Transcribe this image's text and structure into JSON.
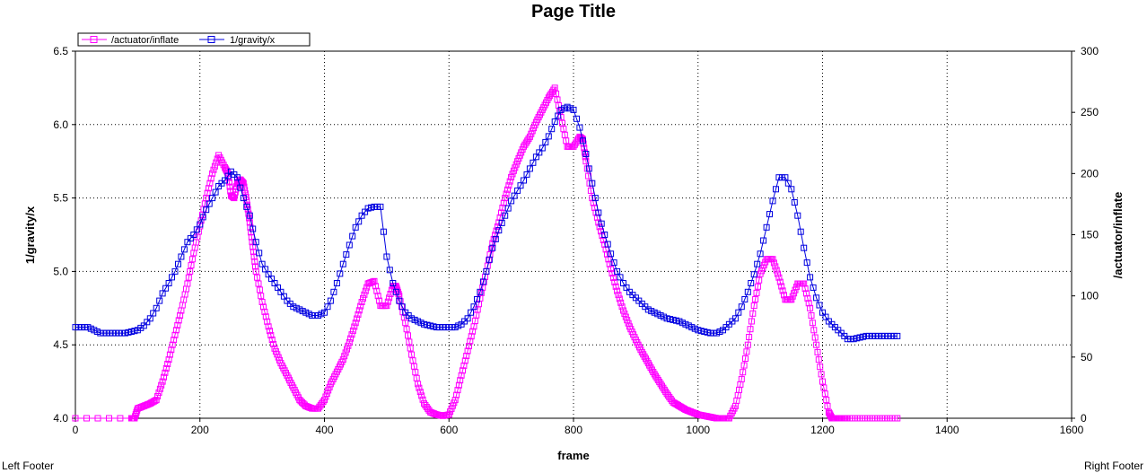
{
  "page": {
    "title": "Page Title",
    "footer_left": "Left Footer",
    "footer_right": "Right Footer"
  },
  "chart_data": {
    "type": "line",
    "title": "Page Title",
    "xlabel": "frame",
    "ylabel_left": "1/gravity/x",
    "ylabel_right": "/actuator/inflate",
    "xlim": [
      0,
      1600
    ],
    "ylim_left": [
      4.0,
      6.5
    ],
    "ylim_right": [
      0,
      300
    ],
    "x_ticks": [
      0,
      200,
      400,
      600,
      800,
      1000,
      1200,
      1400,
      1600
    ],
    "y_left_ticks": [
      4.0,
      4.5,
      5.0,
      5.5,
      6.0,
      6.5
    ],
    "y_right_ticks": [
      0,
      50,
      100,
      150,
      200,
      250,
      300
    ],
    "grid": true,
    "legend_position": "top-left",
    "series": [
      {
        "name": "/actuator/inflate",
        "axis": "right",
        "color": "#ff00ff",
        "marker": "square-open",
        "x": [
          0,
          90,
          95,
          100,
          110,
          120,
          130,
          140,
          150,
          160,
          170,
          180,
          190,
          200,
          210,
          220,
          230,
          240,
          245,
          250,
          255,
          260,
          265,
          270,
          275,
          280,
          285,
          290,
          300,
          310,
          320,
          330,
          340,
          350,
          360,
          370,
          380,
          390,
          400,
          410,
          420,
          430,
          440,
          450,
          460,
          470,
          480,
          490,
          500,
          510,
          515,
          520,
          530,
          540,
          550,
          560,
          570,
          580,
          590,
          600,
          610,
          620,
          630,
          640,
          650,
          660,
          670,
          680,
          690,
          700,
          710,
          720,
          730,
          740,
          750,
          760,
          770,
          780,
          790,
          800,
          810,
          815,
          820,
          830,
          840,
          850,
          860,
          870,
          880,
          890,
          900,
          910,
          920,
          930,
          940,
          950,
          960,
          970,
          980,
          990,
          1000,
          1010,
          1020,
          1030,
          1040,
          1050,
          1060,
          1070,
          1080,
          1090,
          1100,
          1110,
          1120,
          1130,
          1140,
          1150,
          1160,
          1170,
          1180,
          1190,
          1200,
          1210,
          1215,
          1220,
          1230,
          1240,
          1260,
          1280,
          1300,
          1320
        ],
        "y": [
          0,
          0,
          0,
          8,
          10,
          12,
          15,
          30,
          48,
          68,
          88,
          110,
          135,
          157,
          180,
          200,
          215,
          205,
          200,
          182,
          180,
          192,
          195,
          192,
          178,
          160,
          140,
          120,
          95,
          75,
          57,
          45,
          35,
          25,
          15,
          10,
          8,
          8,
          15,
          28,
          38,
          48,
          62,
          78,
          95,
          110,
          112,
          92,
          92,
          108,
          108,
          100,
          78,
          52,
          28,
          12,
          5,
          3,
          2,
          3,
          15,
          35,
          55,
          75,
          98,
          120,
          143,
          160,
          180,
          197,
          210,
          222,
          230,
          242,
          252,
          262,
          270,
          246,
          222,
          222,
          230,
          228,
          210,
          180,
          160,
          142,
          122,
          104,
          88,
          75,
          64,
          54,
          45,
          36,
          28,
          20,
          13,
          10,
          7,
          5,
          3,
          2,
          1,
          0,
          0,
          0,
          10,
          32,
          60,
          92,
          118,
          130,
          130,
          115,
          97,
          97,
          110,
          110,
          90,
          60,
          30,
          5,
          0,
          0,
          0,
          0,
          0,
          0,
          0,
          0
        ]
      },
      {
        "name": "1/gravity/x",
        "axis": "left",
        "color": "#0000e0",
        "marker": "square-open",
        "x": [
          0,
          10,
          20,
          30,
          40,
          50,
          60,
          70,
          80,
          90,
          100,
          110,
          120,
          130,
          140,
          150,
          160,
          170,
          180,
          190,
          200,
          210,
          220,
          230,
          240,
          250,
          260,
          270,
          280,
          290,
          300,
          310,
          320,
          330,
          340,
          350,
          360,
          370,
          380,
          390,
          400,
          410,
          420,
          430,
          440,
          450,
          460,
          470,
          480,
          490,
          500,
          510,
          520,
          530,
          540,
          550,
          560,
          570,
          580,
          590,
          600,
          610,
          620,
          630,
          640,
          650,
          660,
          670,
          680,
          690,
          700,
          710,
          720,
          730,
          740,
          750,
          760,
          770,
          780,
          790,
          800,
          810,
          820,
          830,
          840,
          850,
          860,
          870,
          880,
          890,
          900,
          910,
          920,
          930,
          940,
          950,
          960,
          970,
          980,
          990,
          1000,
          1010,
          1020,
          1030,
          1040,
          1050,
          1060,
          1070,
          1080,
          1090,
          1100,
          1110,
          1120,
          1130,
          1140,
          1150,
          1160,
          1170,
          1180,
          1190,
          1200,
          1210,
          1220,
          1230,
          1240,
          1250,
          1260,
          1270,
          1280,
          1290,
          1300,
          1310,
          1320
        ],
        "y": [
          4.62,
          4.62,
          4.62,
          4.6,
          4.58,
          4.58,
          4.58,
          4.58,
          4.58,
          4.59,
          4.6,
          4.63,
          4.68,
          4.75,
          4.85,
          4.92,
          5.0,
          5.1,
          5.2,
          5.25,
          5.32,
          5.42,
          5.5,
          5.58,
          5.62,
          5.68,
          5.64,
          5.5,
          5.38,
          5.2,
          5.05,
          4.98,
          4.92,
          4.86,
          4.8,
          4.76,
          4.74,
          4.72,
          4.7,
          4.7,
          4.72,
          4.8,
          4.92,
          5.05,
          5.18,
          5.3,
          5.38,
          5.43,
          5.44,
          5.44,
          5.1,
          4.92,
          4.8,
          4.72,
          4.68,
          4.66,
          4.64,
          4.63,
          4.62,
          4.62,
          4.62,
          4.62,
          4.64,
          4.68,
          4.76,
          4.86,
          5.0,
          5.16,
          5.28,
          5.38,
          5.48,
          5.55,
          5.62,
          5.7,
          5.78,
          5.84,
          5.92,
          6.02,
          6.1,
          6.12,
          6.1,
          5.98,
          5.8,
          5.6,
          5.4,
          5.25,
          5.12,
          5.0,
          4.92,
          4.86,
          4.82,
          4.78,
          4.74,
          4.72,
          4.7,
          4.68,
          4.67,
          4.66,
          4.64,
          4.62,
          4.6,
          4.59,
          4.58,
          4.58,
          4.6,
          4.64,
          4.68,
          4.76,
          4.86,
          4.98,
          5.12,
          5.3,
          5.48,
          5.64,
          5.64,
          5.56,
          5.38,
          5.16,
          4.96,
          4.82,
          4.72,
          4.66,
          4.62,
          4.58,
          4.54,
          4.54,
          4.55,
          4.56,
          4.56,
          4.56,
          4.56,
          4.56,
          4.56
        ]
      }
    ]
  }
}
